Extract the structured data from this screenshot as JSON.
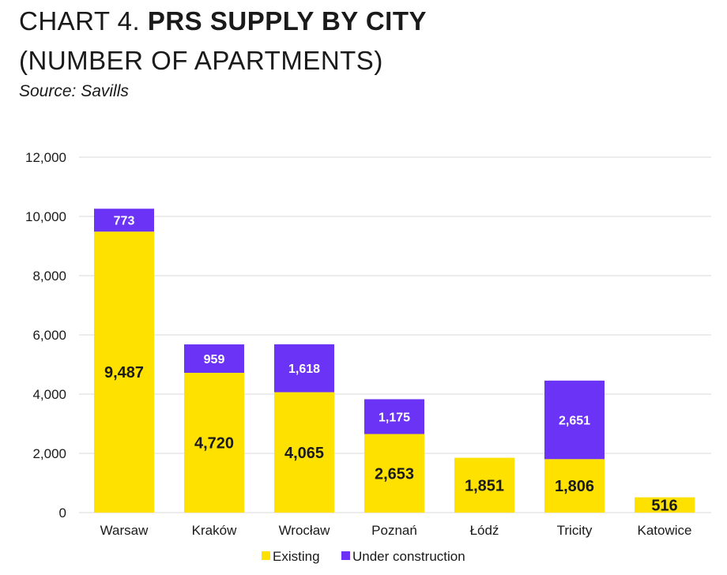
{
  "header": {
    "title_prefix": "CHART 4. ",
    "title_bold": "PRS SUPPLY BY CITY",
    "title_line2": "(NUMBER OF APARTMENTS)",
    "source": "Source: Savills"
  },
  "colors": {
    "existing": "#FFE100",
    "under_construction": "#6A33F5",
    "grid": "#d9d9d9"
  },
  "chart_data": {
    "type": "bar",
    "stacked": true,
    "title": "CHART 4. PRS SUPPLY BY CITY (NUMBER OF APARTMENTS)",
    "xlabel": "",
    "ylabel": "",
    "ylim": [
      0,
      12000
    ],
    "yticks": [
      0,
      2000,
      4000,
      6000,
      8000,
      10000,
      12000
    ],
    "ytick_labels": [
      "0",
      "2,000",
      "4,000",
      "6,000",
      "8,000",
      "10,000",
      "12,000"
    ],
    "categories": [
      "Warsaw",
      "Kraków",
      "Wrocław",
      "Poznań",
      "Łódź",
      "Tricity",
      "Katowice"
    ],
    "series": [
      {
        "name": "Existing",
        "values": [
          9487,
          4720,
          4065,
          2653,
          1851,
          1806,
          516
        ],
        "labels": [
          "9,487",
          "4,720",
          "4,065",
          "2,653",
          "1,851",
          "1,806",
          "516"
        ]
      },
      {
        "name": "Under construction",
        "values": [
          773,
          959,
          1618,
          1175,
          0,
          2651,
          0
        ],
        "labels": [
          "773",
          "959",
          "1,618",
          "1,175",
          "",
          "2,651",
          ""
        ]
      }
    ],
    "legend": [
      "Existing",
      "Under construction"
    ],
    "legend_position": "bottom",
    "grid": true
  }
}
